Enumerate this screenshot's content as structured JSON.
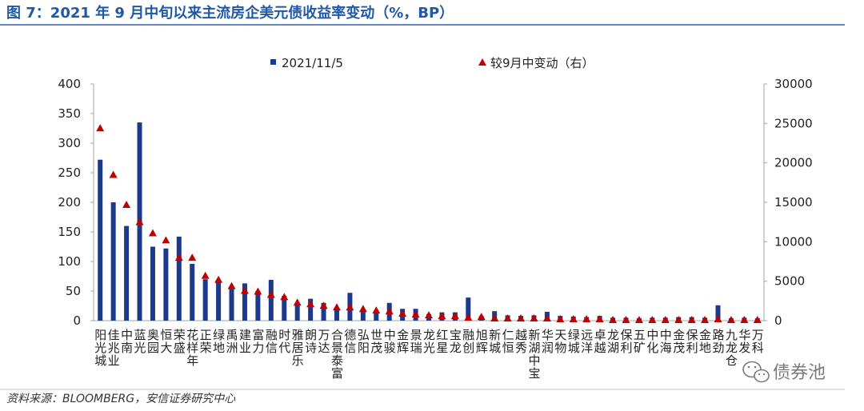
{
  "chart_data": {
    "type": "bar",
    "title": "图 7：2021 年 9 月中旬以来主流房企美元债收益率变动（%，BP）",
    "categories": [
      "阳光城",
      "佳兆业",
      "中南",
      "蓝光",
      "奥园",
      "恒大",
      "荣盛",
      "花样年",
      "正荣",
      "绿地",
      "禹洲",
      "建业",
      "富力",
      "融信",
      "时代",
      "雅居乐",
      "朗诗",
      "万达",
      "合景泰富",
      "德信",
      "弘阳",
      "世茂",
      "中骏",
      "金辉",
      "景瑞",
      "龙光",
      "红星",
      "宝龙",
      "融创",
      "旭辉",
      "新城",
      "仁恒",
      "越秀",
      "新湖中宝",
      "华润",
      "天物",
      "绿城",
      "远洋",
      "卓越",
      "龙湖",
      "保利",
      "五矿",
      "中化",
      "中海",
      "金茂",
      "保利",
      "金地",
      "路劲",
      "九龙仓",
      "华发",
      "万科"
    ],
    "series": [
      {
        "name": "2021/11/5",
        "mark": "bar",
        "axis": "left",
        "values": [
          272,
          200,
          160,
          335,
          125,
          122,
          142,
          96,
          70,
          65,
          57,
          63,
          50,
          69,
          42,
          28,
          37,
          30,
          20,
          47,
          18,
          15,
          30,
          20,
          20,
          11,
          14,
          14,
          39,
          8,
          16,
          9,
          8,
          9,
          15,
          8,
          7,
          6,
          8,
          5,
          5,
          4,
          5,
          5,
          6,
          6,
          5,
          26,
          4,
          5,
          4
        ]
      },
      {
        "name": "较9月中变动（右）",
        "mark": "triangle",
        "axis": "right",
        "values": [
          24400,
          18500,
          14700,
          12500,
          11100,
          10200,
          8000,
          8000,
          5700,
          5200,
          4400,
          3800,
          3700,
          3300,
          3000,
          2300,
          2100,
          1900,
          1700,
          1700,
          1500,
          1300,
          1200,
          900,
          800,
          700,
          600,
          600,
          400,
          500,
          300,
          300,
          300,
          300,
          300,
          200,
          200,
          200,
          200,
          100,
          100,
          100,
          100,
          100,
          100,
          100,
          100,
          200,
          100,
          100,
          100
        ]
      }
    ],
    "y_left": {
      "ylim": [
        0,
        400
      ],
      "ticks": [
        0,
        50,
        100,
        150,
        200,
        250,
        300,
        350,
        400
      ]
    },
    "y_right": {
      "ylim": [
        0,
        30000
      ],
      "ticks": [
        0,
        5000,
        10000,
        15000,
        20000,
        25000,
        30000
      ]
    },
    "legend": "top-center",
    "grid": false
  },
  "colors": {
    "title": "#1f58a8",
    "title_rule": "#2e5fae",
    "bar": "#1c3a8c",
    "marker": "#c00000",
    "footer_rule": "#bfbfbf",
    "watermark": "#7a7a7a"
  },
  "footer": {
    "source": "资料来源：BLOOMBERG，安信证券研究中心"
  },
  "watermark": {
    "text": "债券池",
    "icon": "wechat-icon"
  }
}
